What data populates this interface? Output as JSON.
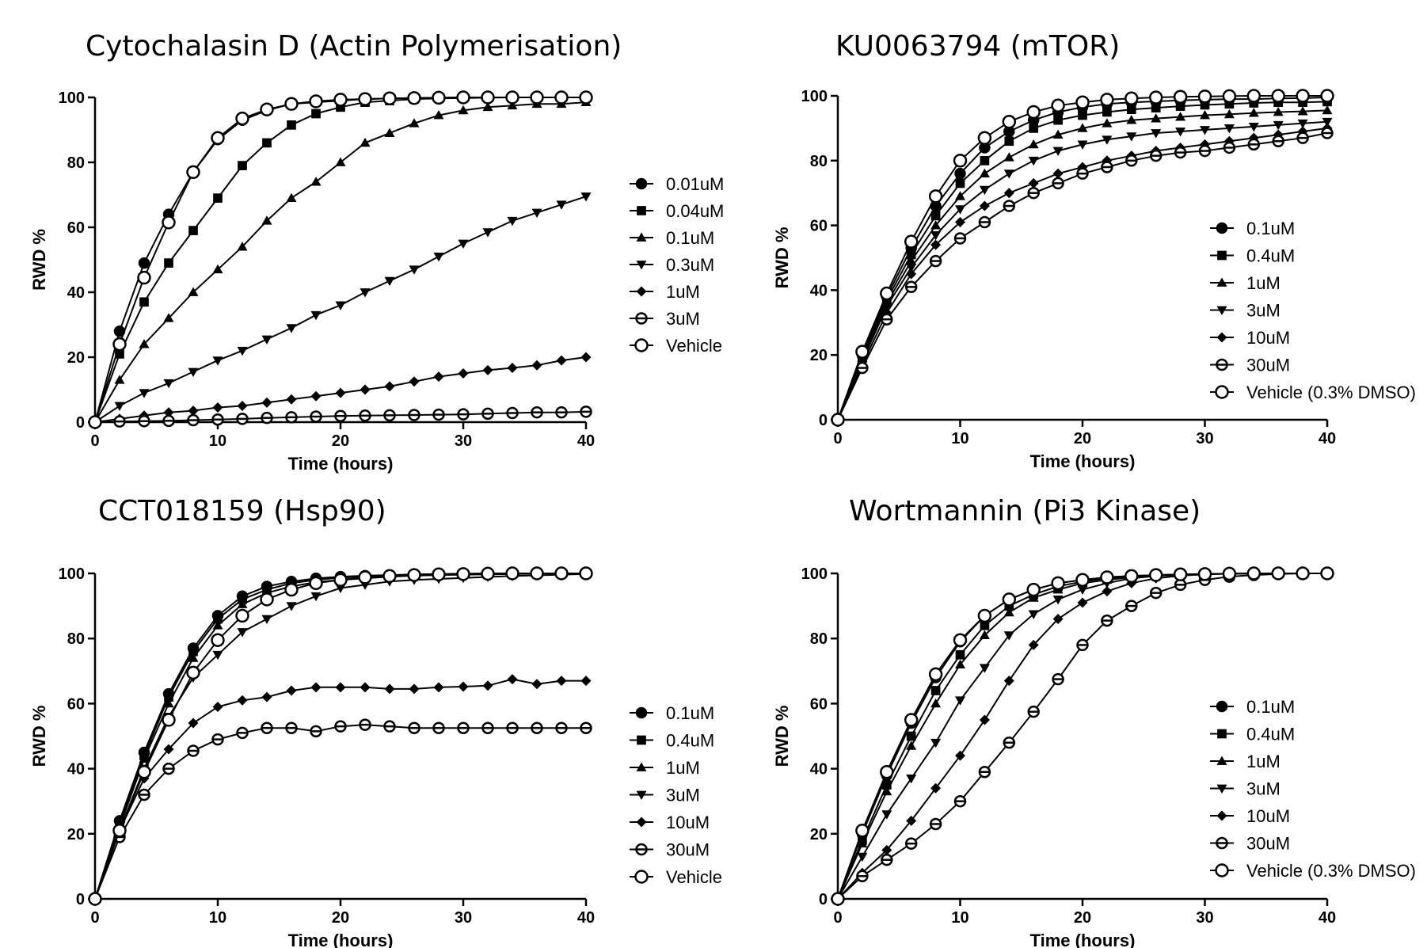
{
  "chart_data": [
    {
      "type": "line",
      "title": "Cytochalasin D (Actin Polymerisation)",
      "xlabel": "Time (hours)",
      "ylabel": "RWD %",
      "xlim": [
        0,
        40
      ],
      "ylim": [
        0,
        100
      ],
      "xticks": [
        "0",
        "10",
        "20",
        "30",
        "40"
      ],
      "yticks": [
        "0",
        "20",
        "40",
        "60",
        "80",
        "100"
      ],
      "legend_position": "right",
      "x": [
        0,
        2,
        4,
        6,
        8,
        10,
        12,
        14,
        16,
        18,
        20,
        22,
        24,
        26,
        28,
        30,
        32,
        34,
        36,
        38,
        40
      ],
      "series": [
        {
          "name": "0.01uM",
          "marker": "circle-filled",
          "values": [
            0,
            28,
            49,
            64,
            77,
            87,
            93,
            96,
            98,
            98.5,
            99,
            99.5,
            99.7,
            99.8,
            99.9,
            100,
            100,
            100,
            100,
            100,
            100
          ]
        },
        {
          "name": "0.04uM",
          "marker": "square",
          "values": [
            0,
            21,
            37,
            49,
            59,
            69,
            79,
            86,
            91.5,
            95,
            97,
            98.5,
            99,
            99.5,
            99.7,
            99.8,
            99.9,
            100,
            100,
            100,
            100
          ]
        },
        {
          "name": "0.1uM",
          "marker": "triangle-up",
          "values": [
            0,
            13,
            24,
            32,
            40,
            47,
            54,
            62,
            69,
            74,
            80,
            86,
            89,
            92,
            94.5,
            96,
            97,
            97.5,
            98,
            98,
            98.5
          ]
        },
        {
          "name": "0.3uM",
          "marker": "triangle-down",
          "values": [
            0,
            5,
            9,
            12,
            15.5,
            19,
            22,
            25.5,
            29,
            33,
            36,
            40,
            43.5,
            47,
            51,
            55,
            58.5,
            62,
            64.5,
            67,
            69.5
          ]
        },
        {
          "name": "1uM",
          "marker": "diamond",
          "values": [
            0,
            1,
            2,
            3,
            3.5,
            4.5,
            5,
            6,
            7,
            8,
            9,
            10,
            11,
            12.5,
            14,
            15,
            16,
            16.7,
            17.5,
            19,
            20
          ]
        },
        {
          "name": "3uM",
          "marker": "circle-bar",
          "values": [
            0,
            0.2,
            0.3,
            0.4,
            0.6,
            0.8,
            1,
            1.3,
            1.5,
            1.7,
            1.9,
            2,
            2.1,
            2.2,
            2.3,
            2.4,
            2.6,
            2.8,
            3,
            3,
            3.2
          ]
        },
        {
          "name": "Vehicle",
          "marker": "circle-open",
          "values": [
            0,
            24,
            44.5,
            61.5,
            77,
            87.5,
            93.5,
            96.3,
            98,
            98.8,
            99.3,
            99.5,
            99.7,
            99.8,
            99.9,
            100,
            100,
            100,
            100,
            100,
            100
          ]
        }
      ]
    },
    {
      "type": "line",
      "title": "KU0063794 (mTOR)",
      "xlabel": "Time (hours)",
      "ylabel": "RWD %",
      "xlim": [
        0,
        40
      ],
      "ylim": [
        0,
        100
      ],
      "xticks": [
        "0",
        "10",
        "20",
        "30",
        "40"
      ],
      "yticks": [
        "0",
        "20",
        "40",
        "60",
        "80",
        "100"
      ],
      "legend_position": "right",
      "x": [
        0,
        2,
        4,
        6,
        8,
        10,
        12,
        14,
        16,
        18,
        20,
        22,
        24,
        26,
        28,
        30,
        32,
        34,
        36,
        38,
        40
      ],
      "series": [
        {
          "name": "0.1uM",
          "marker": "circle-filled",
          "values": [
            0,
            20,
            38,
            53,
            66,
            76,
            84,
            89,
            92.5,
            95,
            96.5,
            97.5,
            98,
            98.3,
            98.6,
            98.8,
            99,
            99,
            99.2,
            99.3,
            99.5
          ]
        },
        {
          "name": "0.4uM",
          "marker": "square",
          "values": [
            0,
            19,
            37,
            51,
            63,
            73,
            80,
            86,
            90,
            92.5,
            94,
            95,
            95.8,
            96.3,
            96.8,
            97.2,
            97.5,
            97.8,
            98,
            98,
            98.2
          ]
        },
        {
          "name": "1uM",
          "marker": "triangle-up",
          "values": [
            0,
            19,
            36,
            49,
            60,
            69,
            76,
            81,
            85,
            88,
            90,
            91.5,
            92.5,
            93,
            93.5,
            94,
            94.3,
            94.7,
            95,
            95.2,
            95.5
          ]
        },
        {
          "name": "3uM",
          "marker": "triangle-down",
          "values": [
            0,
            18,
            35,
            47,
            57,
            65,
            71,
            76,
            80,
            83,
            85,
            86.5,
            87.5,
            88.5,
            89,
            89.5,
            90,
            90.5,
            91,
            91.5,
            92
          ]
        },
        {
          "name": "10uM",
          "marker": "diamond",
          "values": [
            0,
            17,
            33,
            45,
            54,
            61,
            66,
            70,
            73,
            76,
            78,
            80,
            81.5,
            83,
            84,
            85,
            86,
            87,
            88,
            89,
            90
          ]
        },
        {
          "name": "30uM",
          "marker": "circle-bar",
          "values": [
            0,
            16,
            31,
            41,
            49,
            56,
            61,
            66,
            70,
            73,
            76,
            78,
            80,
            81.5,
            82.5,
            83,
            84,
            85,
            86,
            87,
            88.5
          ]
        },
        {
          "name": "Vehicle (0.3% DMSO)",
          "marker": "circle-open",
          "values": [
            0,
            21,
            39,
            55,
            69,
            80,
            87,
            92,
            95,
            97,
            98,
            98.8,
            99.2,
            99.5,
            99.7,
            99.8,
            99.9,
            100,
            100,
            100,
            100
          ]
        }
      ]
    },
    {
      "type": "line",
      "title": "CCT018159 (Hsp90)",
      "xlabel": "Time (hours)",
      "ylabel": "RWD %",
      "xlim": [
        0,
        40
      ],
      "ylim": [
        0,
        100
      ],
      "xticks": [
        "0",
        "10",
        "20",
        "30",
        "40"
      ],
      "yticks": [
        "0",
        "20",
        "40",
        "60",
        "80",
        "100"
      ],
      "legend_position": "right",
      "x": [
        0,
        2,
        4,
        6,
        8,
        10,
        12,
        14,
        16,
        18,
        20,
        22,
        24,
        26,
        28,
        30,
        32,
        34,
        36,
        38,
        40
      ],
      "series": [
        {
          "name": "0.1uM",
          "marker": "circle-filled",
          "values": [
            0,
            24,
            45,
            63,
            77,
            87,
            93,
            96,
            97.5,
            98.5,
            99,
            99.3,
            99.5,
            99.7,
            99.8,
            99.9,
            100,
            100,
            100,
            100,
            100
          ]
        },
        {
          "name": "0.4uM",
          "marker": "square",
          "values": [
            0,
            23,
            44,
            62,
            76,
            86,
            92,
            95,
            97,
            98,
            98.7,
            99,
            99.3,
            99.5,
            99.7,
            99.8,
            99.9,
            100,
            100,
            100,
            100
          ]
        },
        {
          "name": "1uM",
          "marker": "triangle-up",
          "values": [
            0,
            22,
            43,
            60,
            74,
            84,
            90.5,
            94,
            96,
            97.3,
            98,
            98.5,
            99,
            99.3,
            99.5,
            99.6,
            99.7,
            99.8,
            99.9,
            100,
            100
          ]
        },
        {
          "name": "3uM",
          "marker": "triangle-down",
          "values": [
            0,
            21,
            40,
            56,
            68,
            75,
            82,
            86,
            90,
            93,
            95.5,
            96.5,
            97.5,
            98,
            98.3,
            98.6,
            98.9,
            99.2,
            99.4,
            99.6,
            99.8
          ]
        },
        {
          "name": "10uM",
          "marker": "diamond",
          "values": [
            0,
            21,
            37,
            46,
            54,
            59,
            61,
            62,
            64,
            65,
            65,
            65,
            64.5,
            64.5,
            65,
            65.2,
            65.5,
            67.5,
            66,
            67,
            67
          ]
        },
        {
          "name": "30uM",
          "marker": "circle-bar",
          "values": [
            0,
            19,
            32,
            40,
            45.5,
            49,
            51,
            52.5,
            52.5,
            51.5,
            53,
            53.5,
            53,
            52.5,
            52.5,
            52.5,
            52.5,
            52.5,
            52.5,
            52.5,
            52.5
          ]
        },
        {
          "name": "Vehicle",
          "marker": "circle-open",
          "values": [
            0,
            21,
            39,
            55,
            69.5,
            79.5,
            87,
            92,
            95,
            97,
            98,
            98.8,
            99.2,
            99.5,
            99.7,
            99.8,
            99.9,
            100,
            100,
            100,
            100
          ]
        }
      ]
    },
    {
      "type": "line",
      "title": "Wortmannin (Pi3 Kinase)",
      "xlabel": "Time (hours)",
      "ylabel": "RWD %",
      "xlim": [
        0,
        40
      ],
      "ylim": [
        0,
        100
      ],
      "xticks": [
        "0",
        "10",
        "20",
        "30",
        "40"
      ],
      "yticks": [
        "0",
        "20",
        "40",
        "60",
        "80",
        "100"
      ],
      "legend_position": "right",
      "x": [
        0,
        2,
        4,
        6,
        8,
        10,
        12,
        14,
        16,
        18,
        20,
        22,
        24,
        26,
        28,
        30,
        32,
        34,
        36,
        38,
        40
      ],
      "series": [
        {
          "name": "0.1uM",
          "marker": "circle-filled",
          "values": [
            0,
            20,
            38,
            54,
            68,
            79,
            87,
            92,
            95,
            97,
            98,
            98.8,
            99.2,
            99.5,
            99.7,
            99.8,
            99.9,
            100,
            100,
            100,
            100
          ]
        },
        {
          "name": "0.4uM",
          "marker": "square",
          "values": [
            0,
            18,
            35,
            50,
            64,
            75,
            84,
            90,
            93.5,
            96,
            97.5,
            98.5,
            99,
            99.4,
            99.6,
            99.8,
            99.9,
            100,
            100,
            100,
            100
          ]
        },
        {
          "name": "1uM",
          "marker": "triangle-up",
          "values": [
            0,
            17,
            33,
            47,
            60,
            72,
            81,
            88,
            92.5,
            95,
            97,
            98,
            98.8,
            99.3,
            99.6,
            99.8,
            99.9,
            100,
            100,
            100,
            100
          ]
        },
        {
          "name": "3uM",
          "marker": "triangle-down",
          "values": [
            0,
            13,
            26,
            37,
            48,
            61,
            71,
            81,
            87.5,
            92,
            95,
            97,
            98.5,
            99.2,
            99.6,
            99.8,
            99.9,
            100,
            100,
            100,
            100
          ]
        },
        {
          "name": "10uM",
          "marker": "diamond",
          "values": [
            0,
            8,
            15,
            24,
            34,
            44,
            55,
            67,
            78,
            86,
            91,
            94.5,
            97,
            98.5,
            99.3,
            99.7,
            99.9,
            100,
            100,
            100,
            100
          ]
        },
        {
          "name": "30uM",
          "marker": "circle-bar",
          "values": [
            0,
            7,
            12,
            17,
            23,
            30,
            39,
            48,
            57.5,
            67.5,
            78,
            85.5,
            90,
            94,
            96.5,
            98,
            99,
            99.5,
            99.8,
            100,
            100
          ]
        },
        {
          "name": "Vehicle (0.3% DMSO)",
          "marker": "circle-open",
          "values": [
            0,
            21,
            39,
            55,
            69,
            79.5,
            87,
            92,
            95,
            97,
            98,
            98.8,
            99.2,
            99.5,
            99.7,
            99.8,
            99.9,
            100,
            100,
            100,
            100
          ]
        }
      ]
    }
  ]
}
